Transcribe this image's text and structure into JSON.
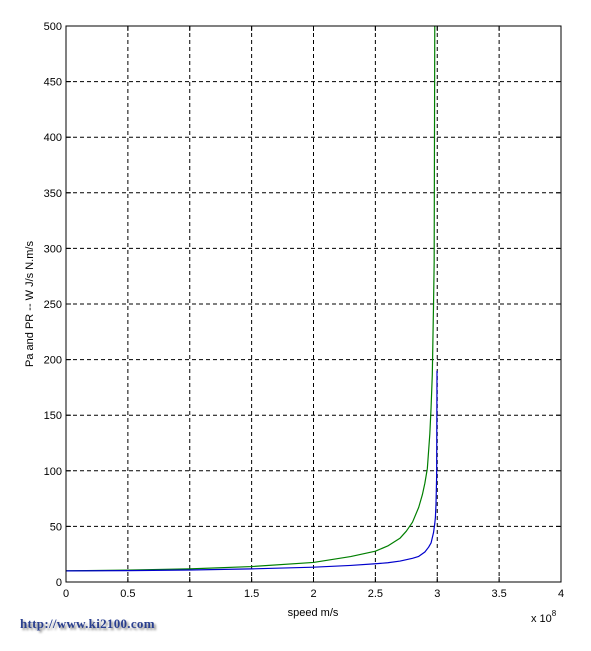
{
  "chart_data": {
    "type": "line",
    "title": "",
    "xlabel": "speed m/s",
    "ylabel": "Pa and PR -- W J/s  N.m/s",
    "x_exponent": "x 10",
    "x_exponent_power": "8",
    "xlim": [
      0,
      4
    ],
    "ylim": [
      0,
      500
    ],
    "x_ticks": [
      "0",
      "0.5",
      "1",
      "1.5",
      "2",
      "2.5",
      "3",
      "3.5",
      "4"
    ],
    "y_ticks": [
      "0",
      "50",
      "100",
      "150",
      "200",
      "250",
      "300",
      "350",
      "400",
      "450",
      "500"
    ],
    "grid": true,
    "x_scale_factor": 100000000,
    "series": [
      {
        "color": "#007f00",
        "x": [
          0,
          0.5,
          1.0,
          1.5,
          2.0,
          2.3,
          2.5,
          2.6,
          2.7,
          2.75,
          2.8,
          2.85,
          2.88,
          2.9,
          2.92,
          2.94,
          2.95,
          2.96,
          2.97,
          2.975,
          2.98
        ],
        "y": [
          10,
          10.7,
          11.8,
          13.9,
          17.6,
          22.9,
          27.7,
          32.4,
          39.5,
          45.7,
          53.8,
          67.1,
          78.6,
          88.9,
          102.1,
          133.1,
          156.6,
          186.3,
          249.8,
          287.0,
          500
        ]
      },
      {
        "color": "#0000cc",
        "x": [
          0,
          0.5,
          1.0,
          1.5,
          2.0,
          2.3,
          2.5,
          2.6,
          2.7,
          2.8,
          2.85,
          2.9,
          2.93,
          2.95,
          2.97,
          2.98,
          2.985,
          2.99,
          2.995,
          2.998
        ],
        "y": [
          10,
          10.2,
          10.8,
          11.8,
          13.3,
          14.9,
          16.4,
          17.3,
          18.8,
          21.3,
          23.0,
          27.0,
          31.3,
          35.1,
          44.5,
          52.6,
          58.0,
          70.0,
          95.0,
          190.0
        ]
      }
    ]
  },
  "watermark": "http://www.ki2100.com"
}
